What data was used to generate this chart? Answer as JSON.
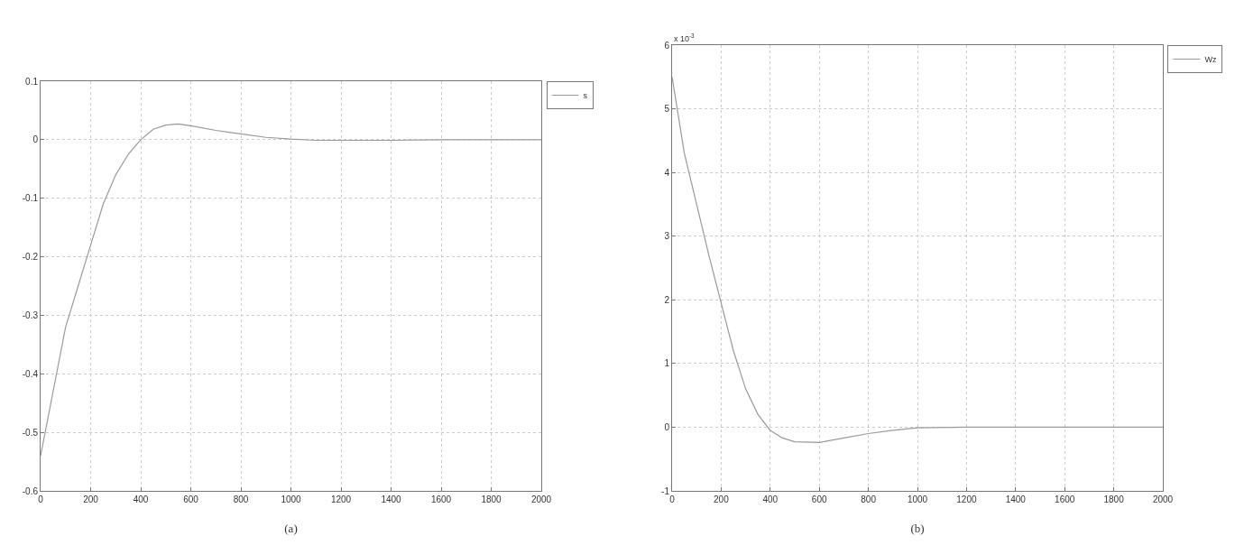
{
  "chart_data": [
    {
      "type": "line",
      "xlabel": "(a)",
      "x": [
        0,
        50,
        100,
        150,
        200,
        250,
        300,
        350,
        400,
        450,
        500,
        550,
        600,
        700,
        800,
        900,
        1000,
        1100,
        1200,
        1400,
        1600,
        1800,
        2000
      ],
      "series": [
        {
          "name": "s",
          "color": "#9a9a9a",
          "values": [
            -0.54,
            -0.43,
            -0.32,
            -0.25,
            -0.18,
            -0.11,
            -0.06,
            -0.025,
            0,
            0.018,
            0.025,
            0.027,
            0.024,
            0.016,
            0.01,
            0.004,
            0.001,
            -0.001,
            -0.001,
            -0.001,
            0,
            0,
            0
          ]
        }
      ],
      "xlim": [
        0,
        2000
      ],
      "xticks": [
        0,
        200,
        400,
        600,
        800,
        1000,
        1200,
        1400,
        1600,
        1800,
        2000
      ],
      "ylim": [
        -0.6,
        0.1
      ],
      "yticks": [
        -0.6,
        -0.5,
        -0.4,
        -0.3,
        -0.2,
        -0.1,
        0,
        0.1
      ],
      "grid": true,
      "legend": "top right",
      "line_style": "solid"
    },
    {
      "type": "line",
      "xlabel": "(b)",
      "annotations": [
        "x 10$^{-3}$"
      ],
      "x": [
        0,
        50,
        100,
        150,
        200,
        250,
        300,
        350,
        400,
        450,
        500,
        600,
        700,
        800,
        900,
        1000,
        1200,
        1400,
        1600,
        1800,
        2000
      ],
      "series": [
        {
          "name": "Wz",
          "color": "#9a9a9a",
          "values": [
            5.5,
            4.3,
            3.5,
            2.7,
            1.95,
            1.2,
            0.6,
            0.2,
            -0.05,
            -0.17,
            -0.23,
            -0.24,
            -0.17,
            -0.1,
            -0.05,
            -0.01,
            0,
            0,
            0,
            0,
            0
          ]
        }
      ],
      "xlim": [
        0,
        2000
      ],
      "xticks": [
        0,
        200,
        400,
        600,
        800,
        1000,
        1200,
        1400,
        1600,
        1800,
        2000
      ],
      "ylim": [
        -1,
        6
      ],
      "yticks": [
        -1,
        0,
        1,
        2,
        3,
        4,
        5,
        6
      ],
      "grid": true,
      "legend": "top right",
      "line_style": "solid"
    }
  ]
}
